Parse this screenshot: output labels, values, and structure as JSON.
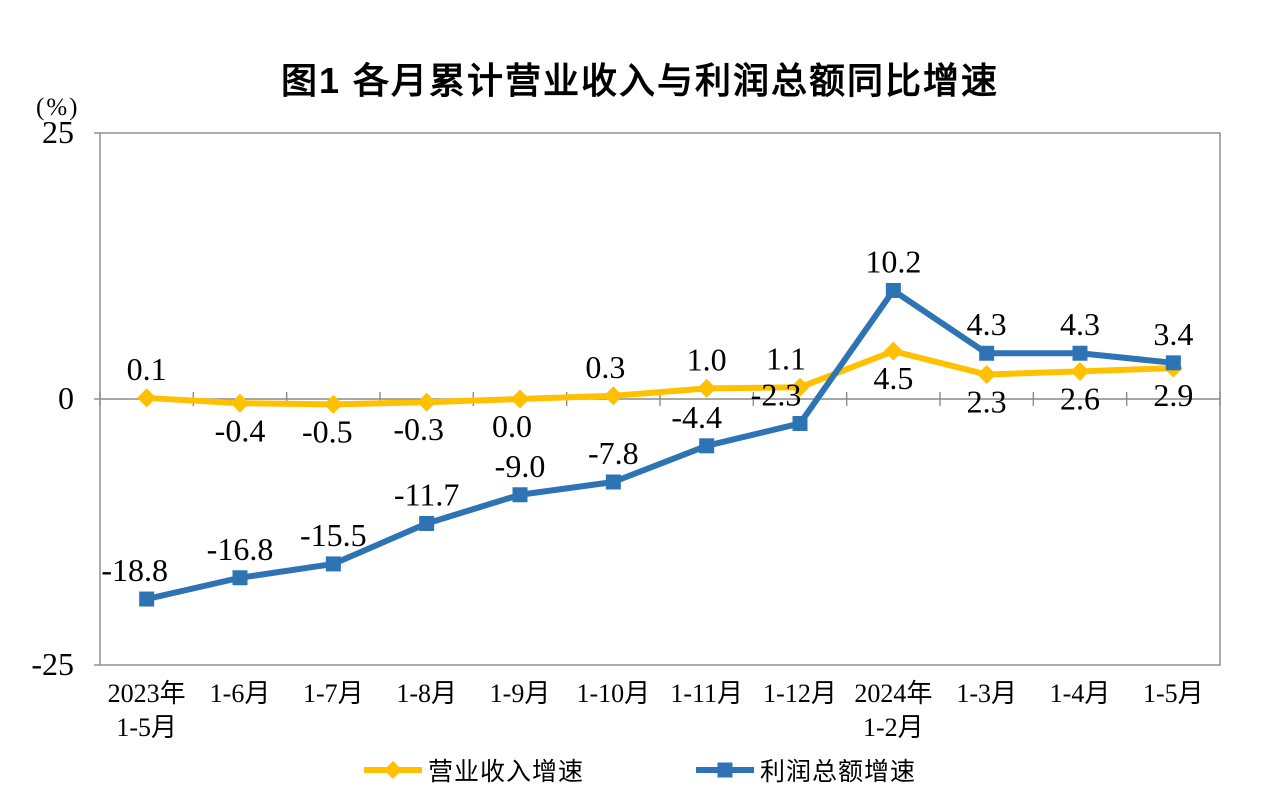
{
  "title": "图1 各月累计营业收入与利润总额同比增速",
  "y_axis": {
    "unit": "(%)",
    "ticks": [
      25,
      0,
      -25
    ]
  },
  "chart_data": {
    "type": "line",
    "title": "图1 各月累计营业收入与利润总额同比增速",
    "unit": "(%)",
    "categories": [
      "2023年\n1-5月",
      "1-6月",
      "1-7月",
      "1-8月",
      "1-9月",
      "1-10月",
      "1-11月",
      "1-12月",
      "2024年\n1-2月",
      "1-3月",
      "1-4月",
      "1-5月"
    ],
    "series": [
      {
        "id": "revenue",
        "name": "营业收入增速",
        "color": "#FFC000",
        "marker": "diamond",
        "values": [
          0.1,
          -0.4,
          -0.5,
          -0.3,
          0.0,
          0.3,
          1.0,
          1.1,
          4.5,
          2.3,
          2.6,
          2.9
        ],
        "label_positions": [
          "above",
          "below",
          "below",
          "below",
          "below",
          "above",
          "above",
          "above",
          "below",
          "below",
          "below",
          "below"
        ],
        "label_dx": [
          0,
          0,
          -6,
          -8,
          -8,
          -8,
          0,
          -14,
          0,
          0,
          0,
          0
        ]
      },
      {
        "id": "profit",
        "name": "利润总额增速",
        "color": "#2E74B5",
        "marker": "square",
        "values": [
          -18.8,
          -16.8,
          -15.5,
          -11.7,
          -9.0,
          -7.8,
          -4.4,
          -2.3,
          10.2,
          4.3,
          4.3,
          3.4
        ],
        "label_positions": [
          "above",
          "above",
          "above",
          "above",
          "above",
          "above",
          "above",
          "above",
          "above",
          "above",
          "above",
          "above"
        ],
        "label_dx": [
          -12,
          0,
          0,
          0,
          0,
          0,
          -10,
          -24,
          0,
          0,
          0,
          0
        ]
      }
    ],
    "ylim": [
      -25,
      25
    ],
    "yticks": [
      25,
      0,
      -25
    ],
    "grid": false,
    "legend_position": "bottom",
    "axis_color": "#8a8a8a",
    "label_color": "#000000"
  }
}
